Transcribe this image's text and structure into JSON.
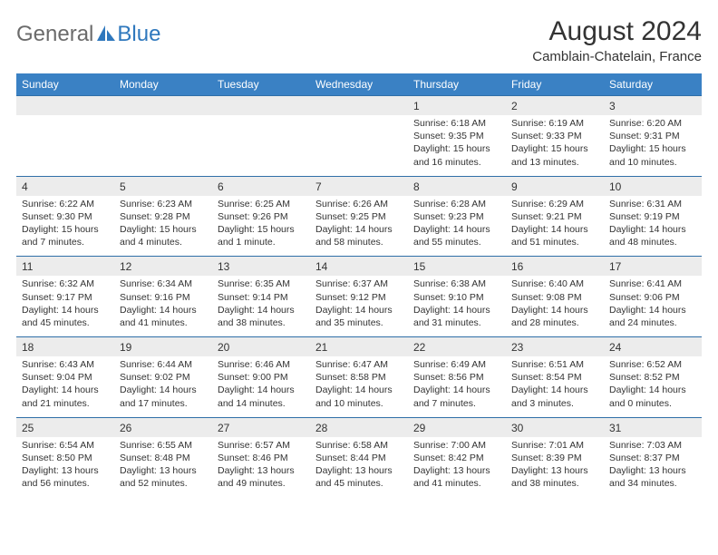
{
  "logo": {
    "general": "General",
    "blue": "Blue"
  },
  "title": "August 2024",
  "location": "Camblain-Chatelain, France",
  "weekdays": [
    "Sunday",
    "Monday",
    "Tuesday",
    "Wednesday",
    "Thursday",
    "Friday",
    "Saturday"
  ],
  "colors": {
    "header_bg": "#3a81c4",
    "header_text": "#ffffff",
    "daynum_bg": "#ececec",
    "row_border": "#2f6fa8",
    "text": "#333333",
    "logo_gray": "#6b6b6b",
    "logo_blue": "#2f78bd"
  },
  "weeks": [
    [
      null,
      null,
      null,
      null,
      {
        "n": "1",
        "sunrise": "6:18 AM",
        "sunset": "9:35 PM",
        "dl": "15 hours and 16 minutes."
      },
      {
        "n": "2",
        "sunrise": "6:19 AM",
        "sunset": "9:33 PM",
        "dl": "15 hours and 13 minutes."
      },
      {
        "n": "3",
        "sunrise": "6:20 AM",
        "sunset": "9:31 PM",
        "dl": "15 hours and 10 minutes."
      }
    ],
    [
      {
        "n": "4",
        "sunrise": "6:22 AM",
        "sunset": "9:30 PM",
        "dl": "15 hours and 7 minutes."
      },
      {
        "n": "5",
        "sunrise": "6:23 AM",
        "sunset": "9:28 PM",
        "dl": "15 hours and 4 minutes."
      },
      {
        "n": "6",
        "sunrise": "6:25 AM",
        "sunset": "9:26 PM",
        "dl": "15 hours and 1 minute."
      },
      {
        "n": "7",
        "sunrise": "6:26 AM",
        "sunset": "9:25 PM",
        "dl": "14 hours and 58 minutes."
      },
      {
        "n": "8",
        "sunrise": "6:28 AM",
        "sunset": "9:23 PM",
        "dl": "14 hours and 55 minutes."
      },
      {
        "n": "9",
        "sunrise": "6:29 AM",
        "sunset": "9:21 PM",
        "dl": "14 hours and 51 minutes."
      },
      {
        "n": "10",
        "sunrise": "6:31 AM",
        "sunset": "9:19 PM",
        "dl": "14 hours and 48 minutes."
      }
    ],
    [
      {
        "n": "11",
        "sunrise": "6:32 AM",
        "sunset": "9:17 PM",
        "dl": "14 hours and 45 minutes."
      },
      {
        "n": "12",
        "sunrise": "6:34 AM",
        "sunset": "9:16 PM",
        "dl": "14 hours and 41 minutes."
      },
      {
        "n": "13",
        "sunrise": "6:35 AM",
        "sunset": "9:14 PM",
        "dl": "14 hours and 38 minutes."
      },
      {
        "n": "14",
        "sunrise": "6:37 AM",
        "sunset": "9:12 PM",
        "dl": "14 hours and 35 minutes."
      },
      {
        "n": "15",
        "sunrise": "6:38 AM",
        "sunset": "9:10 PM",
        "dl": "14 hours and 31 minutes."
      },
      {
        "n": "16",
        "sunrise": "6:40 AM",
        "sunset": "9:08 PM",
        "dl": "14 hours and 28 minutes."
      },
      {
        "n": "17",
        "sunrise": "6:41 AM",
        "sunset": "9:06 PM",
        "dl": "14 hours and 24 minutes."
      }
    ],
    [
      {
        "n": "18",
        "sunrise": "6:43 AM",
        "sunset": "9:04 PM",
        "dl": "14 hours and 21 minutes."
      },
      {
        "n": "19",
        "sunrise": "6:44 AM",
        "sunset": "9:02 PM",
        "dl": "14 hours and 17 minutes."
      },
      {
        "n": "20",
        "sunrise": "6:46 AM",
        "sunset": "9:00 PM",
        "dl": "14 hours and 14 minutes."
      },
      {
        "n": "21",
        "sunrise": "6:47 AM",
        "sunset": "8:58 PM",
        "dl": "14 hours and 10 minutes."
      },
      {
        "n": "22",
        "sunrise": "6:49 AM",
        "sunset": "8:56 PM",
        "dl": "14 hours and 7 minutes."
      },
      {
        "n": "23",
        "sunrise": "6:51 AM",
        "sunset": "8:54 PM",
        "dl": "14 hours and 3 minutes."
      },
      {
        "n": "24",
        "sunrise": "6:52 AM",
        "sunset": "8:52 PM",
        "dl": "14 hours and 0 minutes."
      }
    ],
    [
      {
        "n": "25",
        "sunrise": "6:54 AM",
        "sunset": "8:50 PM",
        "dl": "13 hours and 56 minutes."
      },
      {
        "n": "26",
        "sunrise": "6:55 AM",
        "sunset": "8:48 PM",
        "dl": "13 hours and 52 minutes."
      },
      {
        "n": "27",
        "sunrise": "6:57 AM",
        "sunset": "8:46 PM",
        "dl": "13 hours and 49 minutes."
      },
      {
        "n": "28",
        "sunrise": "6:58 AM",
        "sunset": "8:44 PM",
        "dl": "13 hours and 45 minutes."
      },
      {
        "n": "29",
        "sunrise": "7:00 AM",
        "sunset": "8:42 PM",
        "dl": "13 hours and 41 minutes."
      },
      {
        "n": "30",
        "sunrise": "7:01 AM",
        "sunset": "8:39 PM",
        "dl": "13 hours and 38 minutes."
      },
      {
        "n": "31",
        "sunrise": "7:03 AM",
        "sunset": "8:37 PM",
        "dl": "13 hours and 34 minutes."
      }
    ]
  ]
}
